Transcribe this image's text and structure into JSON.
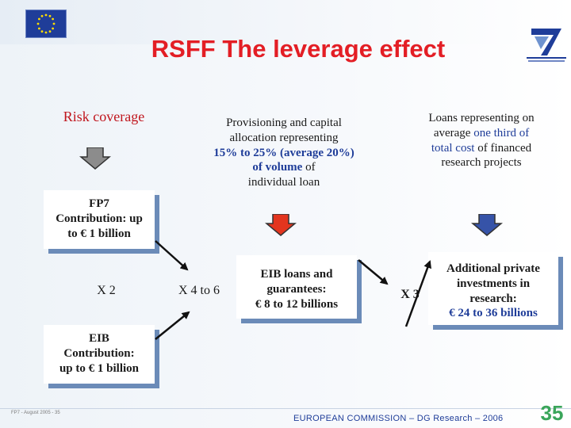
{
  "title": "RSFF The leverage effect",
  "risk_coverage": "Risk coverage",
  "provisioning": {
    "line1": "Provisioning and capital",
    "line2": "allocation representing",
    "line3": "15% to 25% (average 20%)",
    "line4_bold": "of volume",
    "line4_rest": " of",
    "line5": "individual loan"
  },
  "loans": {
    "line1": "Loans representing on",
    "line2_a": "average ",
    "line2_b": "one third of",
    "line3_a": "total cost",
    "line3_b": " of financed",
    "line4": "research projects"
  },
  "fp7_contribution": {
    "line1": "FP7",
    "line2": "Contribution:  up",
    "line3": "to € 1 billion"
  },
  "multipliers": {
    "x2": "X 2",
    "x4to6": "X 4 to 6",
    "x3": "X 3"
  },
  "eib_loans": {
    "line1": "EIB loans and",
    "line2": "guarantees:",
    "line3": "€ 8 to 12 billions"
  },
  "additional_private": {
    "line1": "Additional private",
    "line2": "investments in",
    "line3": "research:",
    "line4": "€ 24 to 36 billions"
  },
  "eib_contribution": {
    "line1": "EIB",
    "line2": "Contribution:",
    "line3": "up to € 1 billion"
  },
  "footer": {
    "left": "FP7 - August 2005 - 35",
    "center": "EUROPEAN COMMISSION – DG Research – 2006",
    "page": "35"
  },
  "colors": {
    "title_red": "#e31e25",
    "blue": "#1f3d99",
    "arrow_gray": "#8c8c8c",
    "arrow_red": "#e3351e",
    "arrow_blue": "#3653a8",
    "page_green": "#3aa55a"
  }
}
